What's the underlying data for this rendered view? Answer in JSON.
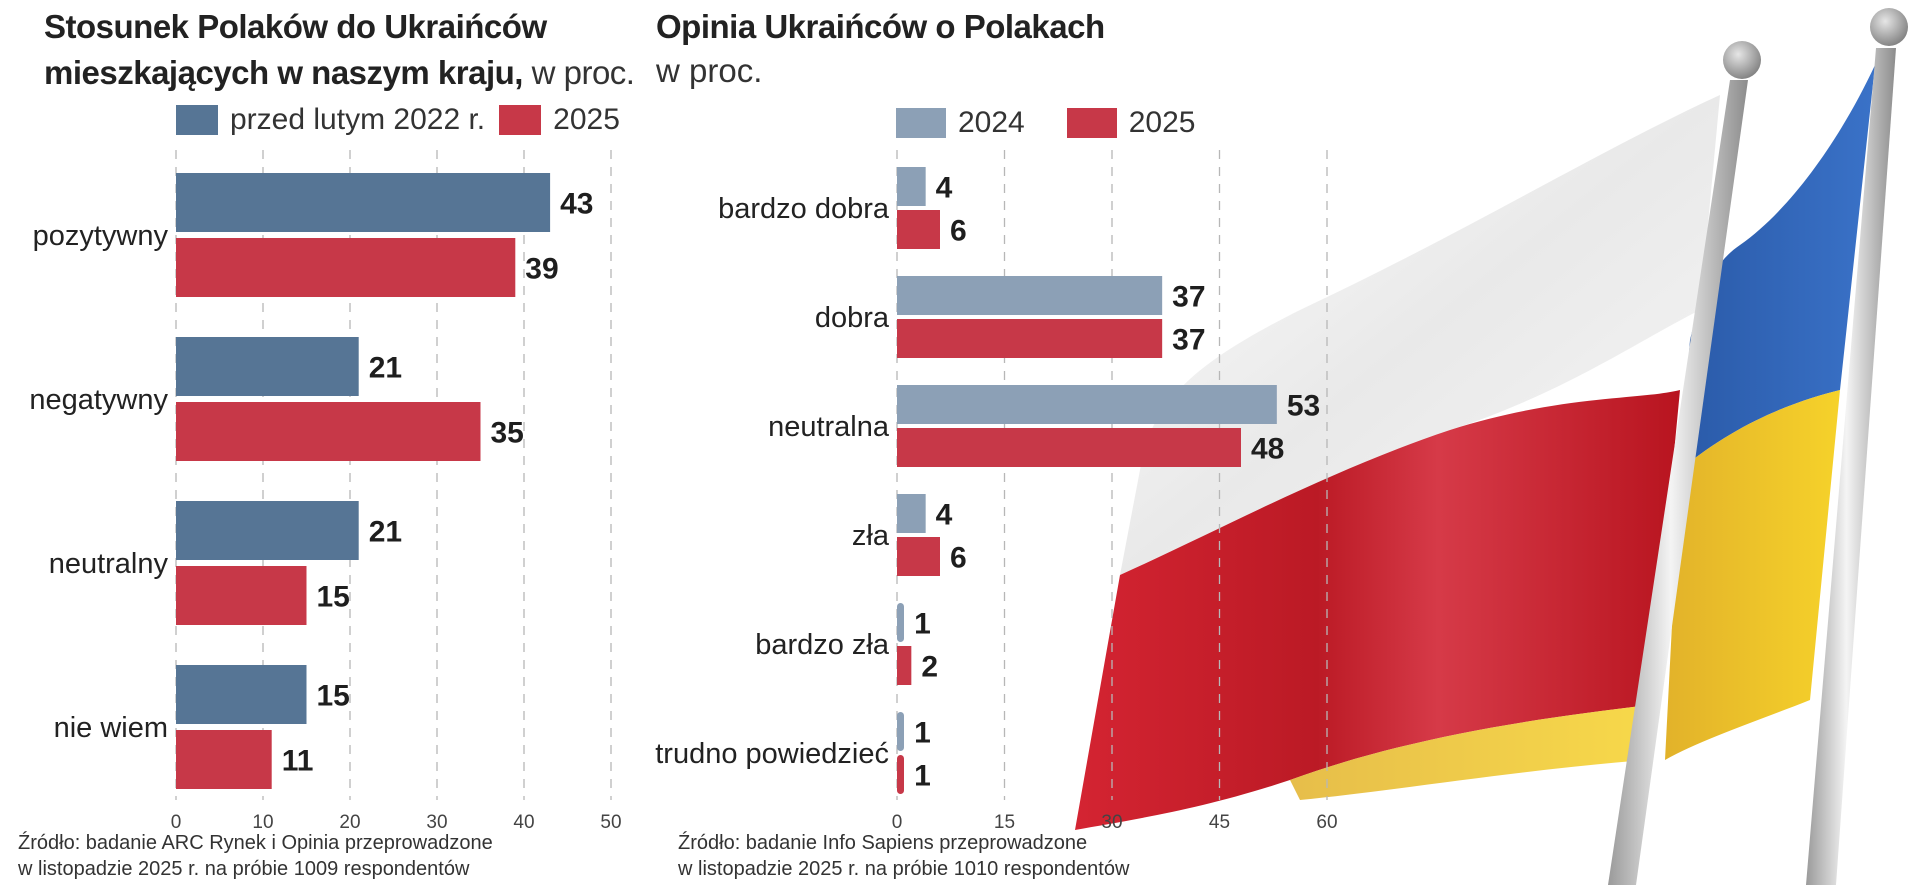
{
  "colors": {
    "left_series_a": "#567595",
    "left_series_b": "#c73848",
    "right_series_a": "#8ca0b6",
    "right_series_b": "#c73848",
    "flag_white": "#f2f2f2",
    "flag_red": "#cc1f2c",
    "flag_blue": "#2f63b8",
    "flag_yellow": "#f4cc2a",
    "pole": "#c8c8c8"
  },
  "left": {
    "title_line1": "Stosunek Polaków do Ukraińców",
    "title_line2": "mieszkających w naszym kraju,",
    "title_unit": " w proc.",
    "legend": [
      "przed lutym 2022 r.",
      "2025"
    ],
    "source_line1": "Źródło: badanie ARC Rynek i Opinia przeprowadzone",
    "source_line2": "w listopadzie 2025 r. na próbie 1009 respondentów"
  },
  "right": {
    "title": "Opinia Ukraińców o Polakach",
    "unit": "w proc.",
    "legend": [
      "2024",
      "2025"
    ],
    "source_line1": "Źródło: badanie Info Sapiens przeprowadzone",
    "source_line2": "w listopadzie 2025 r. na próbie 1010 respondentów"
  },
  "chart_data": [
    {
      "type": "bar",
      "orientation": "horizontal",
      "title": "Stosunek Polaków do Ukraińców mieszkających w naszym kraju, w proc.",
      "categories": [
        "pozytywny",
        "negatywny",
        "neutralny",
        "nie wiem"
      ],
      "series": [
        {
          "name": "przed lutym 2022 r.",
          "values": [
            43,
            21,
            21,
            15
          ]
        },
        {
          "name": "2025",
          "values": [
            39,
            35,
            15,
            11
          ]
        }
      ],
      "xlim": [
        0,
        50
      ],
      "xticks": [
        0,
        10,
        20,
        30,
        40,
        50
      ],
      "grid": true,
      "legend": "top",
      "xlabel": "",
      "ylabel": ""
    },
    {
      "type": "bar",
      "orientation": "horizontal",
      "title": "Opinia Ukraińców o Polakach, w proc.",
      "categories": [
        "bardzo dobra",
        "dobra",
        "neutralna",
        "zła",
        "bardzo zła",
        "trudno powiedzieć"
      ],
      "series": [
        {
          "name": "2024",
          "values": [
            4,
            37,
            53,
            4,
            1,
            1
          ]
        },
        {
          "name": "2025",
          "values": [
            6,
            37,
            48,
            6,
            2,
            1
          ]
        }
      ],
      "xlim": [
        0,
        60
      ],
      "xticks": [
        0,
        15,
        30,
        45,
        60
      ],
      "grid": true,
      "legend": "top",
      "xlabel": "",
      "ylabel": ""
    }
  ]
}
